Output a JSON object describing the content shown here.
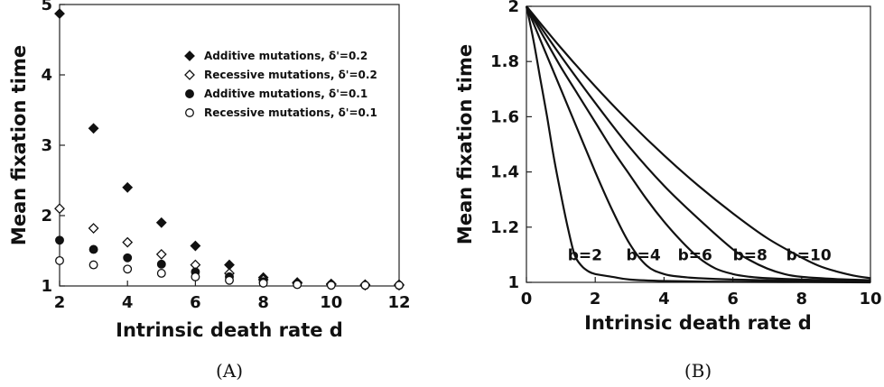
{
  "chart_data": [
    {
      "type": "scatter",
      "caption": "(A)",
      "xlabel": "Intrinsic death rate d",
      "ylabel": "Mean fixation time",
      "xlim": [
        2,
        12
      ],
      "ylim": [
        1,
        5
      ],
      "xticks": [
        2,
        4,
        6,
        8,
        10,
        12
      ],
      "yticks": [
        1,
        2,
        3,
        4,
        5
      ],
      "legend_position": "top-right",
      "series": [
        {
          "name": "Additive mutations, δ'=0.2",
          "marker": "filled-diamond",
          "x": [
            2,
            3,
            4,
            5,
            6,
            7,
            8,
            9,
            10,
            11,
            12
          ],
          "y": [
            4.87,
            3.24,
            2.4,
            1.9,
            1.57,
            1.3,
            1.12,
            1.05,
            1.03,
            1.02,
            1.02
          ]
        },
        {
          "name": "Recessive mutations, δ'=0.2",
          "marker": "open-diamond",
          "x": [
            2,
            3,
            4,
            5,
            6,
            7,
            8,
            9,
            10,
            11,
            12
          ],
          "y": [
            2.1,
            1.82,
            1.62,
            1.45,
            1.3,
            1.18,
            1.09,
            1.04,
            1.02,
            1.01,
            1.01
          ]
        },
        {
          "name": "Additive mutations, δ'=0.1",
          "marker": "filled-circle",
          "x": [
            2,
            3,
            4,
            5,
            6,
            7,
            8,
            9,
            10,
            11,
            12
          ],
          "y": [
            1.65,
            1.52,
            1.4,
            1.31,
            1.2,
            1.13,
            1.06,
            1.03,
            1.02,
            1.01,
            1.01
          ]
        },
        {
          "name": "Recessive mutations, δ'=0.1",
          "marker": "open-circle",
          "x": [
            2,
            3,
            4,
            5,
            6,
            7,
            8,
            9,
            10,
            11,
            12
          ],
          "y": [
            1.36,
            1.3,
            1.24,
            1.18,
            1.13,
            1.08,
            1.04,
            1.02,
            1.01,
            1.01,
            1.01
          ]
        }
      ]
    },
    {
      "type": "line",
      "caption": "(B)",
      "xlabel": "Intrinsic death rate d",
      "ylabel": "Mean fixation time",
      "xlim": [
        0,
        10
      ],
      "ylim": [
        1,
        2
      ],
      "xticks": [
        0,
        2,
        4,
        6,
        8,
        10
      ],
      "yticks": [
        1,
        1.2,
        1.4,
        1.6,
        1.8,
        2
      ],
      "series": [
        {
          "name": "b=2",
          "label_at": [
            1.2,
            1.1
          ],
          "x": [
            0,
            0.2,
            0.4,
            0.6,
            0.8,
            1.0,
            1.2,
            1.4,
            1.6,
            1.8,
            2.0,
            2.5,
            3,
            4,
            6,
            8,
            10
          ],
          "y": [
            2.0,
            1.88,
            1.74,
            1.6,
            1.45,
            1.32,
            1.2,
            1.1,
            1.06,
            1.04,
            1.03,
            1.02,
            1.01,
            1.005,
            1.002,
            1.001,
            1.0
          ]
        },
        {
          "name": "b=4",
          "label_at": [
            2.9,
            1.1
          ],
          "x": [
            0,
            0.5,
            1.0,
            1.5,
            2.0,
            2.5,
            3.0,
            3.5,
            4.0,
            4.5,
            5,
            6,
            8,
            10
          ],
          "y": [
            2.0,
            1.85,
            1.7,
            1.55,
            1.4,
            1.26,
            1.14,
            1.06,
            1.03,
            1.02,
            1.015,
            1.01,
            1.005,
            1.003
          ]
        },
        {
          "name": "b=6",
          "label_at": [
            4.4,
            1.1
          ],
          "x": [
            0,
            0.5,
            1.0,
            1.5,
            2.0,
            2.5,
            3.0,
            3.5,
            4.0,
            4.5,
            5.0,
            5.5,
            6.0,
            6.5,
            7,
            8,
            10
          ],
          "y": [
            2.0,
            1.89,
            1.78,
            1.68,
            1.58,
            1.48,
            1.39,
            1.3,
            1.22,
            1.15,
            1.09,
            1.05,
            1.03,
            1.02,
            1.015,
            1.01,
            1.005
          ]
        },
        {
          "name": "b=8",
          "label_at": [
            6.0,
            1.1
          ],
          "x": [
            0,
            1,
            2,
            3,
            4,
            5,
            6,
            6.5,
            7,
            7.5,
            8,
            9,
            10
          ],
          "y": [
            2.0,
            1.82,
            1.65,
            1.49,
            1.35,
            1.23,
            1.12,
            1.08,
            1.05,
            1.03,
            1.02,
            1.012,
            1.008
          ]
        },
        {
          "name": "b=10",
          "label_at": [
            7.55,
            1.1
          ],
          "x": [
            0,
            1,
            2,
            3,
            4,
            5,
            6,
            7,
            8,
            8.5,
            9,
            9.5,
            10
          ],
          "y": [
            2.0,
            1.85,
            1.71,
            1.58,
            1.46,
            1.35,
            1.25,
            1.16,
            1.09,
            1.06,
            1.04,
            1.025,
            1.015
          ]
        }
      ]
    }
  ]
}
